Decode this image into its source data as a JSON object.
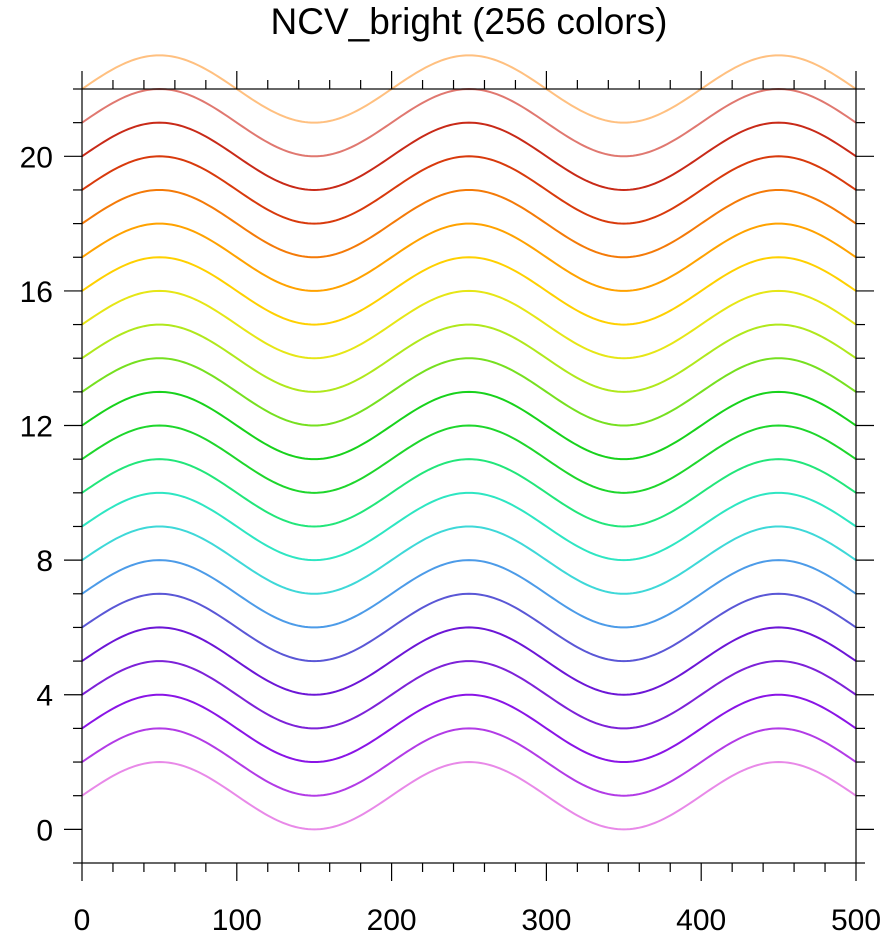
{
  "chart_data": {
    "type": "line",
    "title": "NCV_bright (256 colors)",
    "xlabel": "",
    "ylabel": "",
    "xlim": [
      0,
      500
    ],
    "ylim": [
      -1,
      22
    ],
    "x_ticks": [
      0,
      100,
      200,
      300,
      400,
      500
    ],
    "x_tick_labels": [
      "0",
      "100",
      "200",
      "300",
      "400",
      "500"
    ],
    "y_ticks": [
      0,
      4,
      8,
      12,
      16,
      20
    ],
    "y_tick_labels": [
      "0",
      "4",
      "8",
      "12",
      "16",
      "20"
    ],
    "grid": false,
    "curve": {
      "form": "offset + sin(2*pi*x/200)",
      "x_start": 0,
      "x_end": 500,
      "period": 200,
      "amplitude": 1
    },
    "series": [
      {
        "offset": 1,
        "color": "#e889e8"
      },
      {
        "offset": 2,
        "color": "#b23be6"
      },
      {
        "offset": 3,
        "color": "#8a14e6"
      },
      {
        "offset": 4,
        "color": "#7d22d8"
      },
      {
        "offset": 5,
        "color": "#6c16d6"
      },
      {
        "offset": 6,
        "color": "#5a57d6"
      },
      {
        "offset": 7,
        "color": "#4c9be8"
      },
      {
        "offset": 8,
        "color": "#3ed8d8"
      },
      {
        "offset": 9,
        "color": "#2ee6c2"
      },
      {
        "offset": 10,
        "color": "#22e67a"
      },
      {
        "offset": 11,
        "color": "#1ed62c"
      },
      {
        "offset": 12,
        "color": "#18d21c"
      },
      {
        "offset": 13,
        "color": "#76e020"
      },
      {
        "offset": 14,
        "color": "#b0e81c"
      },
      {
        "offset": 15,
        "color": "#e6e616"
      },
      {
        "offset": 16,
        "color": "#ffd000"
      },
      {
        "offset": 17,
        "color": "#ffa200"
      },
      {
        "offset": 18,
        "color": "#f47a08"
      },
      {
        "offset": 19,
        "color": "#d83a0c"
      },
      {
        "offset": 20,
        "color": "#c82a18"
      },
      {
        "offset": 21,
        "color": "#e07870"
      },
      {
        "offset": 22,
        "color": "#ffc080"
      }
    ]
  }
}
